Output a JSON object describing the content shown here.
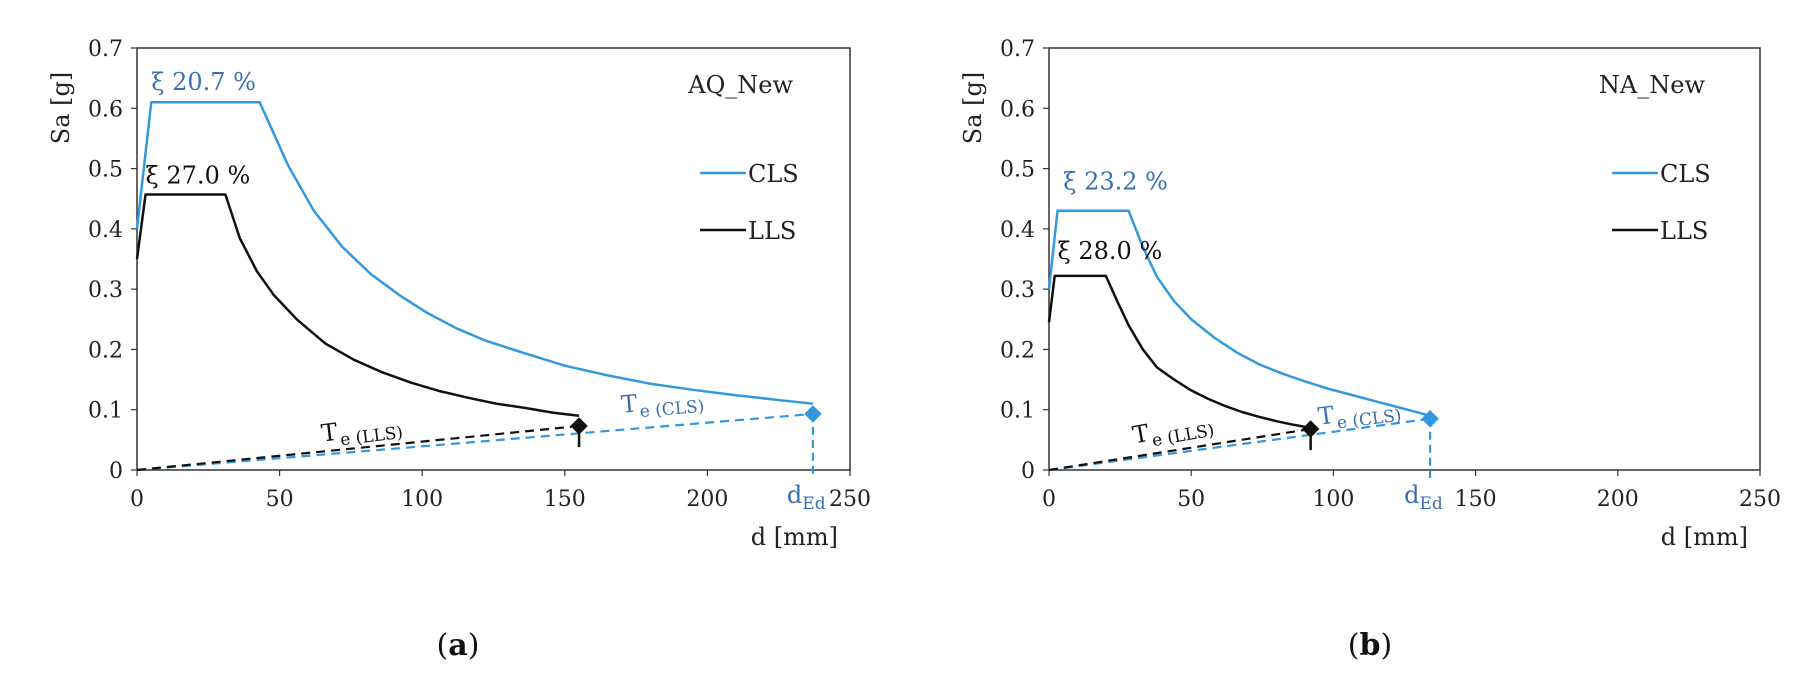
{
  "chart_data": [
    {
      "type": "line",
      "panel_label": "a",
      "title": "AQ_New",
      "xlabel": "d [mm]",
      "ylabel": "Sa [g]",
      "xlim": [
        0,
        250
      ],
      "ylim": [
        0,
        0.7
      ],
      "xticks": [
        0,
        50,
        100,
        150,
        200,
        250
      ],
      "yticks": [
        0,
        0.1,
        0.2,
        0.3,
        0.4,
        0.5,
        0.6,
        0.7
      ],
      "legend": {
        "position": "right",
        "entries": [
          "CLS",
          "LLS"
        ]
      },
      "colors": {
        "CLS": "#3399dd",
        "LLS": "#111111",
        "annot_CLS": "#3a6fb0"
      },
      "series": [
        {
          "name": "CLS",
          "x": [
            0,
            5,
            43,
            53,
            62,
            72,
            82,
            92,
            102,
            112,
            122,
            135,
            150,
            165,
            180,
            195,
            210,
            225,
            237
          ],
          "y": [
            0.4,
            0.61,
            0.61,
            0.505,
            0.43,
            0.37,
            0.325,
            0.29,
            0.26,
            0.235,
            0.215,
            0.195,
            0.173,
            0.157,
            0.143,
            0.133,
            0.124,
            0.116,
            0.11
          ]
        },
        {
          "name": "LLS",
          "x": [
            0,
            3,
            31,
            36,
            42,
            48,
            56,
            66,
            76,
            86,
            96,
            106,
            116,
            126,
            136,
            146,
            155
          ],
          "y": [
            0.35,
            0.457,
            0.457,
            0.385,
            0.33,
            0.29,
            0.25,
            0.21,
            0.183,
            0.162,
            0.145,
            0.131,
            0.12,
            0.11,
            0.103,
            0.095,
            0.09
          ]
        }
      ],
      "damping": [
        {
          "series": "CLS",
          "text": "ξ 20.7 %",
          "x": 5,
          "y": 0.63
        },
        {
          "series": "LLS",
          "text": "ξ 27.0 %",
          "x": 3,
          "y": 0.475
        }
      ],
      "te_lines": [
        {
          "series": "CLS",
          "label_main": "T",
          "label_sub": "e (CLS)",
          "x_end": 237,
          "y_end": 0.093,
          "label_x": 170,
          "label_y": 0.095,
          "angle_deg": -5
        },
        {
          "series": "LLS",
          "label_main": "T",
          "label_sub": "e (LLS)",
          "x_end": 155,
          "y_end": 0.073,
          "label_x": 65,
          "label_y": 0.047,
          "angle_deg": -7
        }
      ],
      "markers": [
        {
          "series": "CLS",
          "x": 237,
          "y": 0.093,
          "drop_to_axis": true
        },
        {
          "series": "LLS",
          "x": 155,
          "y": 0.073,
          "drop_to_axis": false,
          "tick_down": 0.035
        }
      ],
      "ded_label": {
        "main": "d",
        "sub": "Ed",
        "x": 237
      }
    },
    {
      "type": "line",
      "panel_label": "b",
      "title": "NA_New",
      "xlabel": "d [mm]",
      "ylabel": "Sa [g]",
      "xlim": [
        0,
        250
      ],
      "ylim": [
        0,
        0.7
      ],
      "xticks": [
        0,
        50,
        100,
        150,
        200,
        250
      ],
      "yticks": [
        0,
        0.1,
        0.2,
        0.3,
        0.4,
        0.5,
        0.6,
        0.7
      ],
      "legend": {
        "position": "right",
        "entries": [
          "CLS",
          "LLS"
        ]
      },
      "colors": {
        "CLS": "#3399dd",
        "LLS": "#111111",
        "annot_CLS": "#3a6fb0"
      },
      "series": [
        {
          "name": "CLS",
          "x": [
            0,
            3,
            28,
            33,
            38,
            44,
            50,
            58,
            66,
            74,
            82,
            90,
            98,
            106,
            114,
            122,
            130,
            134
          ],
          "y": [
            0.3,
            0.43,
            0.43,
            0.37,
            0.32,
            0.28,
            0.25,
            0.22,
            0.195,
            0.175,
            0.16,
            0.147,
            0.135,
            0.125,
            0.115,
            0.105,
            0.095,
            0.09
          ]
        },
        {
          "name": "LLS",
          "x": [
            0,
            2,
            20,
            24,
            28,
            33,
            38,
            44,
            50,
            56,
            62,
            68,
            74,
            80,
            86,
            92
          ],
          "y": [
            0.245,
            0.322,
            0.322,
            0.28,
            0.24,
            0.2,
            0.17,
            0.15,
            0.132,
            0.118,
            0.106,
            0.096,
            0.088,
            0.081,
            0.075,
            0.07
          ]
        }
      ],
      "damping": [
        {
          "series": "CLS",
          "text": "ξ 23.2 %",
          "x": 5,
          "y": 0.465
        },
        {
          "series": "LLS",
          "text": "ξ 28.0 %",
          "x": 3,
          "y": 0.35
        }
      ],
      "te_lines": [
        {
          "series": "CLS",
          "label_main": "T",
          "label_sub": "e (CLS)",
          "x_end": 134,
          "y_end": 0.085,
          "label_x": 95,
          "label_y": 0.075,
          "angle_deg": -7
        },
        {
          "series": "LLS",
          "label_main": "T",
          "label_sub": "e (LLS)",
          "x_end": 92,
          "y_end": 0.068,
          "label_x": 30,
          "label_y": 0.044,
          "angle_deg": -10
        }
      ],
      "markers": [
        {
          "series": "CLS",
          "x": 134,
          "y": 0.085,
          "drop_to_axis": true
        },
        {
          "series": "LLS",
          "x": 92,
          "y": 0.068,
          "drop_to_axis": false,
          "tick_down": 0.035
        }
      ],
      "ded_label": {
        "main": "d",
        "sub": "Ed",
        "x": 134
      }
    }
  ]
}
